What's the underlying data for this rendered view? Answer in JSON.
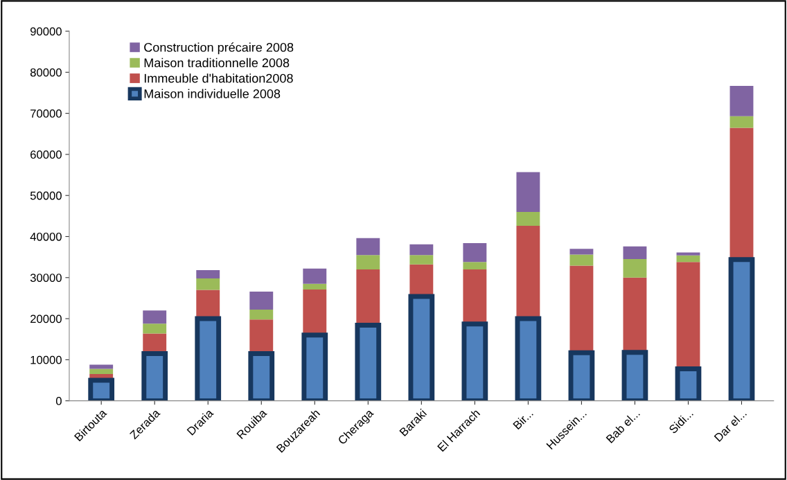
{
  "chart_data": {
    "type": "bar",
    "stacked": true,
    "categories": [
      "Birtouta",
      "Zerada",
      "Draria",
      "Rouiba",
      "Bouzareah",
      "Cheraga",
      "Baraki",
      "El Harrach",
      "Bir...",
      "Hussein...",
      "Bab el...",
      "Sidi...",
      "Dar el..."
    ],
    "series": [
      {
        "name": "Maison individuelle 2008",
        "color": "#4f81bd",
        "values": [
          5000,
          11500,
          20000,
          11500,
          16000,
          18400,
          25400,
          18700,
          20000,
          11700,
          11800,
          7800,
          34400
        ]
      },
      {
        "name": "Immeuble d'habitation2008",
        "color": "#c0504d",
        "values": [
          1500,
          4900,
          7000,
          8300,
          11100,
          13600,
          7800,
          13300,
          22600,
          21200,
          18200,
          26000,
          32100
        ]
      },
      {
        "name": "Maison traditionnelle 2008",
        "color": "#9bbb59",
        "values": [
          1300,
          2400,
          2800,
          2400,
          1400,
          3500,
          2300,
          1800,
          3400,
          2700,
          4500,
          1600,
          2800
        ]
      },
      {
        "name": "Construction précaire 2008",
        "color": "#8064a2",
        "values": [
          1000,
          3200,
          2000,
          4400,
          3700,
          4100,
          2600,
          4600,
          9700,
          1400,
          3100,
          700,
          7400
        ]
      }
    ],
    "ylim": [
      0,
      90000
    ],
    "yticks": [
      0,
      10000,
      20000,
      30000,
      40000,
      50000,
      60000,
      70000,
      80000,
      90000
    ],
    "grid": false,
    "legend": "top left"
  }
}
